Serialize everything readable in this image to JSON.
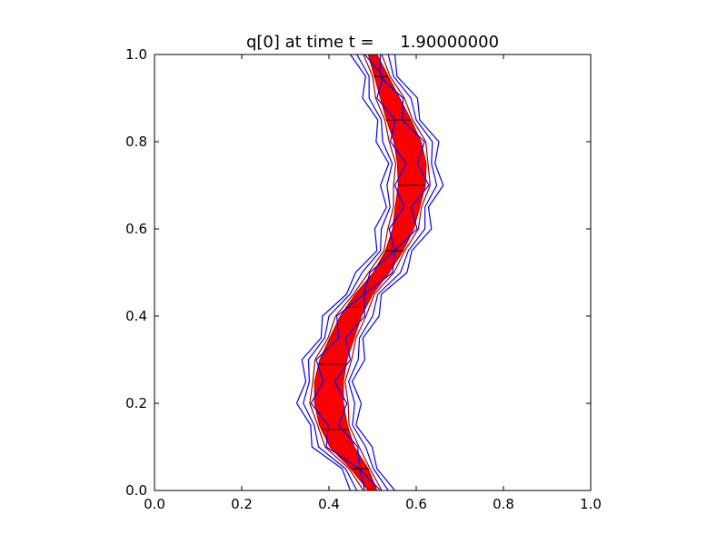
{
  "chart_data": {
    "type": "line",
    "title": "q[0] at time t =     1.90000000",
    "xlabel": "",
    "ylabel": "",
    "xlim": [
      0.0,
      1.0
    ],
    "ylim": [
      0.0,
      1.0
    ],
    "xticks": [
      "0.0",
      "0.2",
      "0.4",
      "0.6",
      "0.8",
      "1.0"
    ],
    "yticks": [
      "0.0",
      "0.2",
      "0.4",
      "0.6",
      "0.8",
      "1.0"
    ],
    "grid": false,
    "legend": "none",
    "colors": {
      "fill": "#ff0000",
      "contour_outer": "#0000ff",
      "contour_inner": "#aa0000",
      "mesh": "#000000"
    },
    "series": [
      {
        "style": "filled-band",
        "center": [
          [
            0.5,
            0.0
          ],
          [
            0.47,
            0.05
          ],
          [
            0.43,
            0.1
          ],
          [
            0.41,
            0.15
          ],
          [
            0.4,
            0.2
          ],
          [
            0.4,
            0.25
          ],
          [
            0.41,
            0.3
          ],
          [
            0.43,
            0.35
          ],
          [
            0.45,
            0.4
          ],
          [
            0.48,
            0.45
          ],
          [
            0.52,
            0.5
          ],
          [
            0.55,
            0.55
          ],
          [
            0.57,
            0.6
          ],
          [
            0.58,
            0.65
          ],
          [
            0.59,
            0.7
          ],
          [
            0.59,
            0.75
          ],
          [
            0.58,
            0.8
          ],
          [
            0.56,
            0.85
          ],
          [
            0.54,
            0.9
          ],
          [
            0.52,
            0.95
          ],
          [
            0.5,
            1.0
          ]
        ],
        "halfwidth": [
          0.01,
          0.02,
          0.028,
          0.032,
          0.033,
          0.033,
          0.031,
          0.028,
          0.024,
          0.02,
          0.018,
          0.02,
          0.024,
          0.028,
          0.031,
          0.033,
          0.031,
          0.028,
          0.022,
          0.016,
          0.01
        ]
      },
      {
        "style": "contour",
        "offset": 0.0
      },
      {
        "style": "contour",
        "offset": 0.012
      },
      {
        "style": "contour",
        "offset": 0.024
      },
      {
        "style": "contour",
        "offset": -0.012
      }
    ],
    "mesh_y": [
      0.05,
      0.14,
      0.29,
      0.42,
      0.55,
      0.7,
      0.85,
      0.95
    ]
  }
}
